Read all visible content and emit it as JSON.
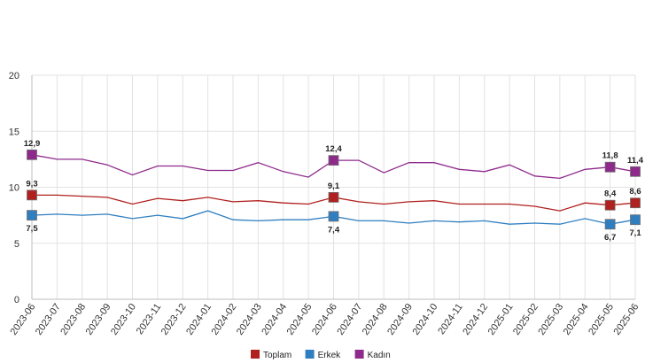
{
  "chart_data": {
    "type": "line",
    "x": [
      "2023-06",
      "2023-07",
      "2023-08",
      "2023-09",
      "2023-10",
      "2023-11",
      "2023-12",
      "2024-01",
      "2024-02",
      "2024-03",
      "2024-04",
      "2024-05",
      "2024-06",
      "2024-07",
      "2024-08",
      "2024-09",
      "2024-10",
      "2024-11",
      "2024-12",
      "2025-01",
      "2025-02",
      "2025-03",
      "2025-04",
      "2025-05",
      "2025-06"
    ],
    "ylim": [
      0,
      20
    ],
    "yticks": [
      "0",
      "5",
      "10",
      "15",
      "20"
    ],
    "grid": true,
    "legend_position": "bottom",
    "series": [
      {
        "name": "Toplam",
        "color": "#b0201e",
        "values": [
          9.3,
          9.3,
          9.2,
          9.1,
          8.5,
          9.0,
          8.8,
          9.1,
          8.7,
          8.8,
          8.6,
          8.5,
          9.1,
          8.7,
          8.5,
          8.7,
          8.8,
          8.5,
          8.5,
          8.5,
          8.3,
          7.9,
          8.6,
          8.4,
          8.6
        ]
      },
      {
        "name": "Erkek",
        "color": "#2f7fc0",
        "values": [
          7.5,
          7.6,
          7.5,
          7.6,
          7.2,
          7.5,
          7.2,
          7.9,
          7.1,
          7.0,
          7.1,
          7.1,
          7.4,
          7.0,
          7.0,
          6.8,
          7.0,
          6.9,
          7.0,
          6.7,
          6.8,
          6.7,
          7.2,
          6.7,
          7.1
        ]
      },
      {
        "name": "Kadın",
        "color": "#8e2a8c",
        "values": [
          12.9,
          12.5,
          12.5,
          12.0,
          11.1,
          11.9,
          11.9,
          11.5,
          11.5,
          12.2,
          11.4,
          10.9,
          12.4,
          12.4,
          11.3,
          12.2,
          12.2,
          11.6,
          11.4,
          12.0,
          11.0,
          10.8,
          11.6,
          11.8,
          11.4
        ]
      }
    ],
    "point_labels": [
      {
        "series": "Kadın",
        "index": 0,
        "text": "12,9",
        "pos": "above"
      },
      {
        "series": "Toplam",
        "index": 0,
        "text": "9,3",
        "pos": "above"
      },
      {
        "series": "Erkek",
        "index": 0,
        "text": "7,5",
        "pos": "below"
      },
      {
        "series": "Kadın",
        "index": 12,
        "text": "12,4",
        "pos": "above"
      },
      {
        "series": "Toplam",
        "index": 12,
        "text": "9,1",
        "pos": "above"
      },
      {
        "series": "Erkek",
        "index": 12,
        "text": "7,4",
        "pos": "below"
      },
      {
        "series": "Kadın",
        "index": 23,
        "text": "11,8",
        "pos": "above"
      },
      {
        "series": "Toplam",
        "index": 23,
        "text": "8,4",
        "pos": "above"
      },
      {
        "series": "Erkek",
        "index": 23,
        "text": "6,7",
        "pos": "below"
      },
      {
        "series": "Kadın",
        "index": 24,
        "text": "11,4",
        "pos": "above"
      },
      {
        "series": "Toplam",
        "index": 24,
        "text": "8,6",
        "pos": "above"
      },
      {
        "series": "Erkek",
        "index": 24,
        "text": "7,1",
        "pos": "below"
      }
    ]
  }
}
